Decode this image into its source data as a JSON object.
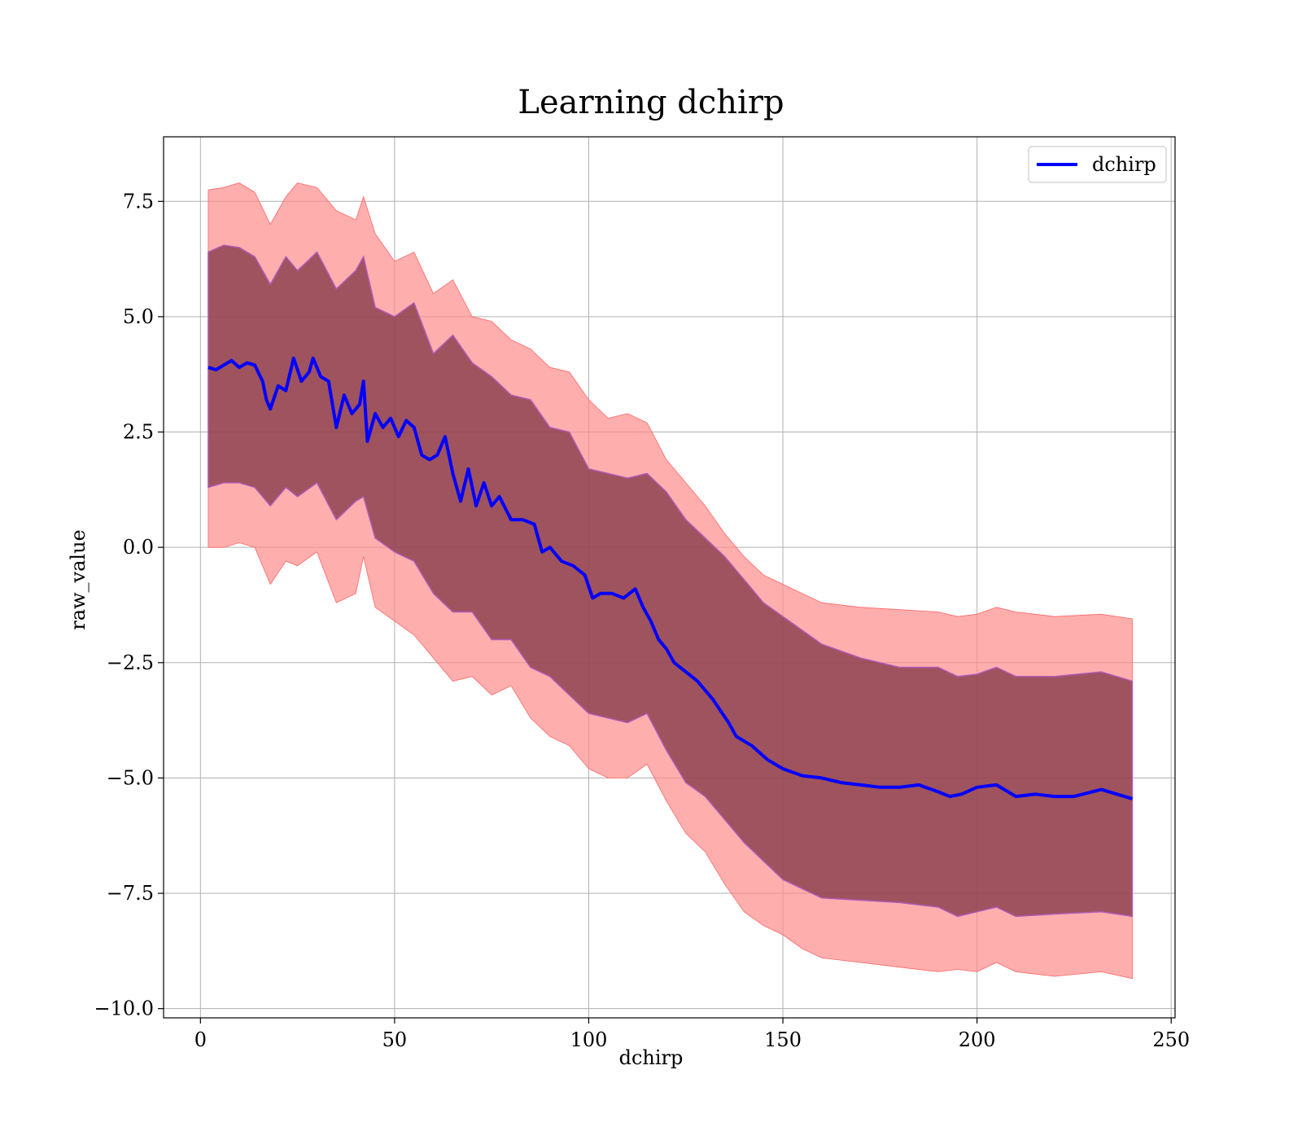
{
  "chart_data": {
    "type": "line",
    "title": "Learning dchirp",
    "xlabel": "dchirp",
    "ylabel": "raw_value",
    "xlim": [
      -9.5,
      251
    ],
    "ylim": [
      -10.2,
      8.9
    ],
    "xticks": [
      0,
      50,
      100,
      150,
      200,
      250
    ],
    "xtick_labels": [
      "0",
      "50",
      "100",
      "150",
      "200",
      "250"
    ],
    "yticks": [
      7.5,
      5.0,
      2.5,
      0.0,
      -2.5,
      -5.0,
      -7.5,
      -10.0
    ],
    "ytick_labels": [
      "7.5",
      "5.0",
      "2.5",
      "0.0",
      "−2.5",
      "−5.0",
      "−7.5",
      "−10.0"
    ],
    "grid": true,
    "legend": {
      "position": "upper right",
      "entries": [
        "dchirp"
      ]
    },
    "colors": {
      "line": "#0000ff",
      "band_outer": "#ff8c8c",
      "band_inner": "#7a3040"
    },
    "series": [
      {
        "name": "dchirp",
        "x": [
          2,
          4,
          6,
          8,
          10,
          12,
          14,
          16,
          17,
          18,
          20,
          22,
          24,
          26,
          28,
          29,
          31,
          33,
          35,
          37,
          39,
          41,
          42,
          43,
          45,
          47,
          49,
          51,
          53,
          55,
          57,
          59,
          61,
          63,
          65,
          67,
          69,
          71,
          73,
          75,
          77,
          80,
          83,
          86,
          88,
          90,
          93,
          96,
          99,
          101,
          103,
          106,
          109,
          112,
          114,
          116,
          118,
          120,
          122,
          125,
          128,
          132,
          136,
          138,
          142,
          146,
          150,
          155,
          160,
          165,
          170,
          175,
          180,
          185,
          190,
          193,
          196,
          200,
          205,
          210,
          215,
          220,
          225,
          232,
          240
        ],
        "y": [
          3.9,
          3.85,
          3.95,
          4.05,
          3.9,
          4.0,
          3.95,
          3.6,
          3.2,
          3.0,
          3.5,
          3.4,
          4.1,
          3.6,
          3.8,
          4.1,
          3.7,
          3.6,
          2.6,
          3.3,
          2.9,
          3.1,
          3.6,
          2.3,
          2.9,
          2.6,
          2.8,
          2.4,
          2.75,
          2.6,
          2.0,
          1.9,
          2.0,
          2.4,
          1.6,
          1.0,
          1.7,
          0.9,
          1.4,
          0.9,
          1.1,
          0.6,
          0.6,
          0.5,
          -0.1,
          0.0,
          -0.3,
          -0.4,
          -0.6,
          -1.1,
          -1.0,
          -1.0,
          -1.1,
          -0.9,
          -1.3,
          -1.6,
          -2.0,
          -2.2,
          -2.5,
          -2.7,
          -2.9,
          -3.3,
          -3.8,
          -4.1,
          -4.3,
          -4.6,
          -4.8,
          -4.95,
          -5.0,
          -5.1,
          -5.15,
          -5.2,
          -5.2,
          -5.15,
          -5.3,
          -5.4,
          -5.35,
          -5.2,
          -5.15,
          -5.4,
          -5.35,
          -5.4,
          -5.4,
          -5.25,
          -5.45
        ]
      }
    ],
    "band_inner": {
      "x": [
        2,
        6,
        10,
        14,
        18,
        22,
        25,
        30,
        35,
        40,
        42,
        45,
        50,
        55,
        60,
        65,
        70,
        75,
        80,
        85,
        90,
        95,
        100,
        105,
        110,
        115,
        120,
        125,
        130,
        135,
        140,
        145,
        150,
        155,
        160,
        170,
        180,
        190,
        195,
        200,
        205,
        210,
        220,
        232,
        240
      ],
      "upper": [
        6.4,
        6.55,
        6.5,
        6.3,
        5.7,
        6.3,
        6.0,
        6.4,
        5.6,
        6.0,
        6.3,
        5.2,
        5.0,
        5.3,
        4.2,
        4.6,
        4.0,
        3.7,
        3.3,
        3.2,
        2.6,
        2.5,
        1.7,
        1.6,
        1.5,
        1.6,
        1.2,
        0.6,
        0.2,
        -0.2,
        -0.7,
        -1.2,
        -1.5,
        -1.8,
        -2.1,
        -2.4,
        -2.6,
        -2.6,
        -2.8,
        -2.75,
        -2.6,
        -2.8,
        -2.8,
        -2.7,
        -2.9
      ],
      "lower": [
        1.3,
        1.4,
        1.4,
        1.3,
        0.9,
        1.3,
        1.1,
        1.4,
        0.6,
        1.0,
        1.1,
        0.2,
        -0.1,
        -0.3,
        -1.0,
        -1.4,
        -1.4,
        -2.0,
        -2.0,
        -2.6,
        -2.8,
        -3.2,
        -3.6,
        -3.7,
        -3.8,
        -3.6,
        -4.4,
        -5.1,
        -5.4,
        -5.9,
        -6.4,
        -6.8,
        -7.2,
        -7.4,
        -7.6,
        -7.65,
        -7.7,
        -7.8,
        -8.0,
        -7.9,
        -7.8,
        -8.0,
        -7.95,
        -7.9,
        -8.0
      ]
    },
    "band_outer": {
      "x": [
        2,
        6,
        10,
        14,
        18,
        22,
        25,
        30,
        35,
        40,
        42,
        45,
        50,
        55,
        60,
        65,
        70,
        75,
        80,
        85,
        90,
        95,
        100,
        105,
        110,
        115,
        120,
        125,
        130,
        135,
        140,
        145,
        150,
        155,
        160,
        170,
        180,
        190,
        195,
        200,
        205,
        210,
        220,
        232,
        240
      ],
      "upper": [
        7.75,
        7.8,
        7.9,
        7.7,
        7.0,
        7.6,
        7.9,
        7.8,
        7.3,
        7.1,
        7.6,
        6.8,
        6.2,
        6.4,
        5.5,
        5.8,
        5.0,
        4.9,
        4.5,
        4.3,
        3.9,
        3.8,
        3.2,
        2.8,
        2.9,
        2.7,
        1.9,
        1.4,
        0.9,
        0.3,
        -0.2,
        -0.6,
        -0.8,
        -1.0,
        -1.2,
        -1.3,
        -1.35,
        -1.4,
        -1.5,
        -1.45,
        -1.3,
        -1.4,
        -1.5,
        -1.45,
        -1.55
      ],
      "lower": [
        0.0,
        0.0,
        0.1,
        0.0,
        -0.8,
        -0.3,
        -0.4,
        -0.1,
        -1.2,
        -1.0,
        -0.2,
        -1.3,
        -1.6,
        -1.9,
        -2.4,
        -2.9,
        -2.8,
        -3.2,
        -3.0,
        -3.7,
        -4.1,
        -4.3,
        -4.8,
        -5.0,
        -5.0,
        -4.7,
        -5.5,
        -6.2,
        -6.6,
        -7.3,
        -7.9,
        -8.2,
        -8.4,
        -8.7,
        -8.9,
        -9.0,
        -9.1,
        -9.2,
        -9.15,
        -9.2,
        -9.0,
        -9.2,
        -9.3,
        -9.2,
        -9.35
      ]
    }
  }
}
